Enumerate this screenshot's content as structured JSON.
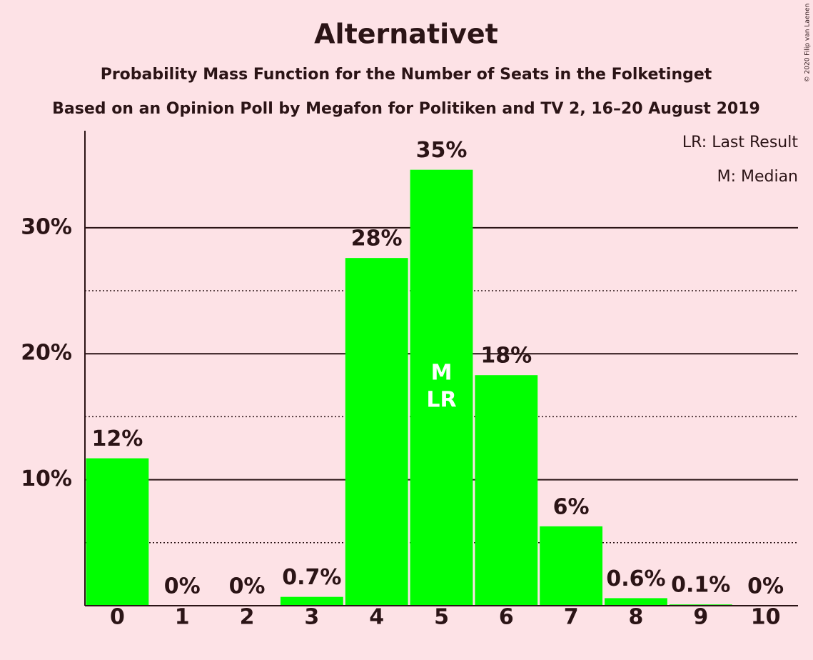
{
  "chart_data": {
    "type": "bar",
    "title": "Alternativet",
    "subtitle": "Probability Mass Function for the Number of Seats in the Folketinget",
    "subtitle2": "Based on an Opinion Poll by Megafon for Politiken and TV 2, 16–20 August 2019",
    "categories": [
      "0",
      "1",
      "2",
      "3",
      "4",
      "5",
      "6",
      "7",
      "8",
      "9",
      "10"
    ],
    "values": [
      11.7,
      0,
      0,
      0.7,
      27.6,
      34.6,
      18.3,
      6.3,
      0.6,
      0.1,
      0
    ],
    "value_labels": [
      "12%",
      "0%",
      "0%",
      "0.7%",
      "28%",
      "35%",
      "18%",
      "6%",
      "0.6%",
      "0.1%",
      "0%"
    ],
    "color": "#00ff00",
    "ylim": [
      0,
      37.7
    ],
    "yticks": [
      {
        "value": 10,
        "label": "10%"
      },
      {
        "value": 20,
        "label": "20%"
      },
      {
        "value": 30,
        "label": "30%"
      }
    ],
    "minor_yticks": [
      5,
      15,
      25
    ],
    "grid": true,
    "median_index": 5,
    "median_label": "M",
    "last_result_index": 5,
    "last_result_label": "LR",
    "legend": [
      "LR: Last Result",
      "M: Median"
    ],
    "copyright": "© 2020 Filip van Laenen"
  }
}
